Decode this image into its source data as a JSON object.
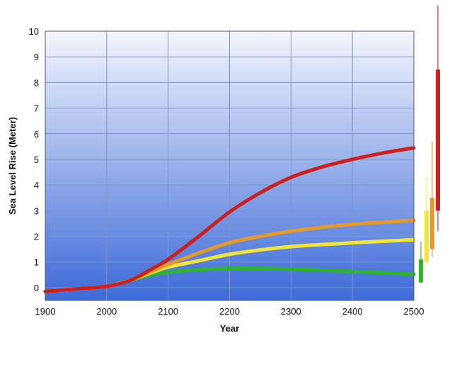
{
  "chart_data": {
    "type": "line",
    "title": "",
    "xlabel": "Year",
    "ylabel": "Sea Level Rise (Meter)",
    "xlim": [
      1900,
      2500
    ],
    "ylim": [
      -0.5,
      10
    ],
    "xticks": [
      1900,
      2000,
      2100,
      2200,
      2300,
      2400,
      2500
    ],
    "yticks": [
      0,
      1,
      2,
      3,
      4,
      5,
      6,
      7,
      8,
      9,
      10
    ],
    "grid": true,
    "background": {
      "top": "#f4f6fd",
      "bottom": "#3d6ad8"
    },
    "series": [
      {
        "color": "#2fb52c",
        "x": [
          1900,
          1950,
          2000,
          2040,
          2075,
          2100,
          2150,
          2200,
          2250,
          2300,
          2350,
          2400,
          2450,
          2500
        ],
        "y": [
          -0.15,
          -0.05,
          0.05,
          0.3,
          0.5,
          0.6,
          0.7,
          0.75,
          0.75,
          0.72,
          0.68,
          0.63,
          0.58,
          0.52
        ]
      },
      {
        "color": "#f2e53a",
        "x": [
          1900,
          1950,
          2000,
          2040,
          2075,
          2100,
          2150,
          2200,
          2250,
          2300,
          2350,
          2400,
          2450,
          2500
        ],
        "y": [
          -0.15,
          -0.05,
          0.05,
          0.3,
          0.6,
          0.8,
          1.05,
          1.3,
          1.47,
          1.6,
          1.68,
          1.75,
          1.81,
          1.87
        ]
      },
      {
        "color": "#e39a2a",
        "x": [
          1900,
          1950,
          2000,
          2040,
          2075,
          2100,
          2150,
          2200,
          2250,
          2300,
          2350,
          2400,
          2450,
          2500
        ],
        "y": [
          -0.15,
          -0.05,
          0.05,
          0.3,
          0.65,
          0.9,
          1.35,
          1.75,
          2.0,
          2.2,
          2.35,
          2.47,
          2.55,
          2.63
        ]
      },
      {
        "color": "#cc1f1f",
        "x": [
          1900,
          1950,
          2000,
          2040,
          2075,
          2100,
          2150,
          2200,
          2250,
          2300,
          2350,
          2400,
          2450,
          2500
        ],
        "y": [
          -0.15,
          -0.05,
          0.05,
          0.3,
          0.75,
          1.1,
          2.0,
          2.95,
          3.7,
          4.3,
          4.7,
          5.0,
          5.25,
          5.45
        ]
      }
    ],
    "range_bars": [
      {
        "color": "#2fb52c",
        "likely": [
          0.2,
          1.1
        ],
        "extended": [
          0.2,
          1.8
        ]
      },
      {
        "color": "#f2e53a",
        "likely": [
          1.0,
          3.0
        ],
        "extended": [
          0.9,
          4.3
        ]
      },
      {
        "color": "#e39a2a",
        "likely": [
          1.5,
          3.5
        ],
        "extended": [
          1.2,
          5.7
        ]
      },
      {
        "color": "#cc1f1f",
        "likely": [
          3.0,
          8.5
        ],
        "extended": [
          2.2,
          11.0
        ]
      }
    ]
  }
}
